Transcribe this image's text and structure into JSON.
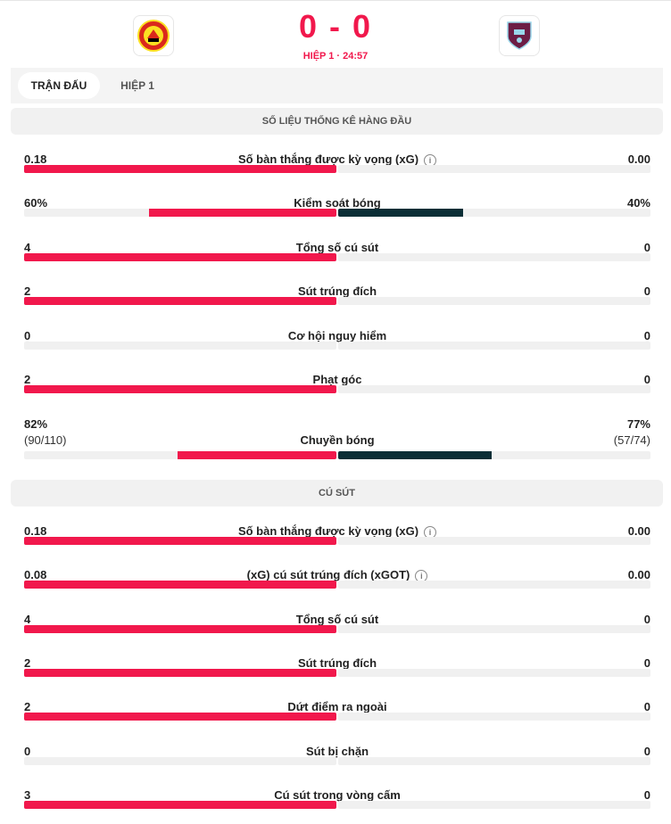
{
  "match": {
    "home_team_icon": "manchester-united-crest",
    "away_team_icon": "burnley-crest",
    "score": "0 - 0",
    "period": "HIỆP 1 · 24:57"
  },
  "tabs": [
    {
      "label": "TRẬN ĐẤU",
      "active": true
    },
    {
      "label": "HIỆP 1",
      "active": false
    }
  ],
  "colors": {
    "home": "#f1184c",
    "away": "#0b2e36",
    "accent": "#f1184c"
  },
  "sections": [
    {
      "title": "SỐ LIỆU THỐNG KÊ HÀNG ĐẦU",
      "stats": [
        {
          "name": "Số bàn thắng được kỳ vọng (xG)",
          "home": "0.18",
          "away": "0.00",
          "home_share": 1.0,
          "away_share": 0.0,
          "info": true
        },
        {
          "name": "Kiểm soát bóng",
          "home": "60%",
          "away": "40%",
          "home_share": 0.6,
          "away_share": 0.4,
          "info": false
        },
        {
          "name": "Tổng số cú sút",
          "home": "4",
          "away": "0",
          "home_share": 1.0,
          "away_share": 0.0,
          "info": false
        },
        {
          "name": "Sút trúng đích",
          "home": "2",
          "away": "0",
          "home_share": 1.0,
          "away_share": 0.0,
          "info": false
        },
        {
          "name": "Cơ hội nguy hiểm",
          "home": "0",
          "away": "0",
          "home_share": 0.0,
          "away_share": 0.0,
          "info": false
        },
        {
          "name": "Phạt góc",
          "home": "2",
          "away": "0",
          "home_share": 1.0,
          "away_share": 0.0,
          "info": false
        },
        {
          "name": "Chuyền bóng",
          "home": "82%",
          "away": "77%",
          "home_sub": "(90/110)",
          "away_sub": "(57/74)",
          "home_share": 0.51,
          "away_share": 0.49,
          "info": false
        }
      ]
    },
    {
      "title": "CÚ SÚT",
      "stats": [
        {
          "name": "Số bàn thắng được kỳ vọng (xG)",
          "home": "0.18",
          "away": "0.00",
          "home_share": 1.0,
          "away_share": 0.0,
          "info": true
        },
        {
          "name": "(xG) cú sút trúng đích (xGOT)",
          "home": "0.08",
          "away": "0.00",
          "home_share": 1.0,
          "away_share": 0.0,
          "info": true
        },
        {
          "name": "Tổng số cú sút",
          "home": "4",
          "away": "0",
          "home_share": 1.0,
          "away_share": 0.0,
          "info": false
        },
        {
          "name": "Sút trúng đích",
          "home": "2",
          "away": "0",
          "home_share": 1.0,
          "away_share": 0.0,
          "info": false
        },
        {
          "name": "Dứt điểm ra ngoài",
          "home": "2",
          "away": "0",
          "home_share": 1.0,
          "away_share": 0.0,
          "info": false
        },
        {
          "name": "Sút bị chặn",
          "home": "0",
          "away": "0",
          "home_share": 0.0,
          "away_share": 0.0,
          "info": false
        },
        {
          "name": "Cú sút trong vòng cấm",
          "home": "3",
          "away": "0",
          "home_share": 1.0,
          "away_share": 0.0,
          "info": false
        }
      ]
    }
  ]
}
